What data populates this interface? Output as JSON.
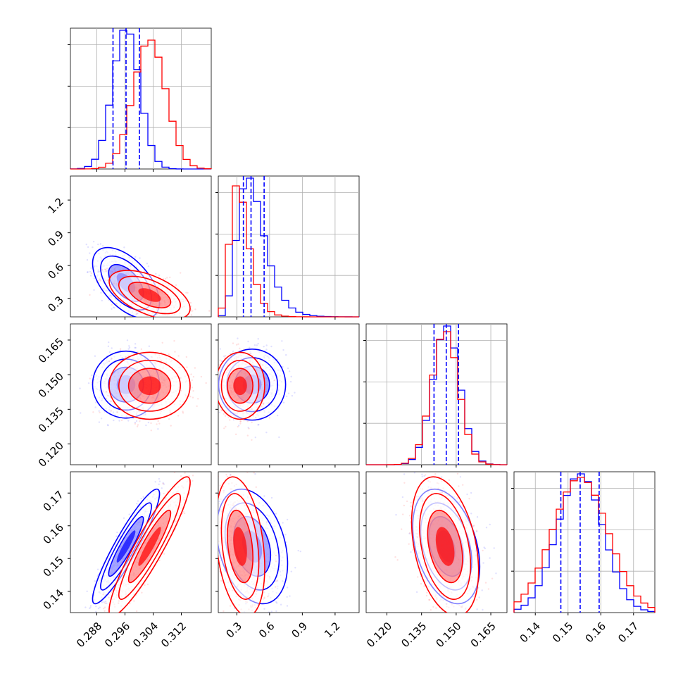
{
  "chart_data": {
    "type": "corner",
    "title": "",
    "parameters": 4,
    "colors": {
      "series_a": "#0000ff",
      "series_b": "#ff0000",
      "grid": "#b0b0b0"
    },
    "grid": true,
    "series": [
      {
        "color": "#0000ff",
        "means": [
          0.2963,
          0.44,
          0.1457,
          0.1537
        ],
        "sds": [
          0.0038,
          0.13,
          0.0058,
          0.007
        ],
        "quantiles_shown": true
      },
      {
        "color": "#ff0000",
        "means": [
          0.303,
          0.33,
          0.1452,
          0.1537
        ],
        "sds": [
          0.0046,
          0.09,
          0.0058,
          0.0085
        ]
      }
    ],
    "correlations": {
      "0-1": [
        -0.55,
        -0.55
      ],
      "0-2": [
        0.0,
        0.0
      ],
      "0-3": [
        0.92,
        0.92
      ],
      "1-2": [
        0.0,
        0.0
      ],
      "1-3": [
        -0.3,
        -0.3
      ],
      "2-3": [
        -0.35,
        -0.35
      ]
    },
    "quantiles": {
      "p0": [
        0.2926,
        0.2963,
        0.3001
      ],
      "p1": [
        0.36,
        0.43,
        0.55
      ],
      "p2": [
        0.1404,
        0.1457,
        0.151
      ],
      "p3": [
        0.1478,
        0.1537,
        0.1595
      ]
    },
    "ranges": [
      [
        0.2805,
        0.3205
      ],
      [
        0.13,
        1.42
      ],
      [
        0.111,
        0.172
      ],
      [
        0.1335,
        0.1765
      ]
    ],
    "histogram_max": [
      0.2,
      0.5,
      0.6,
      0.75
    ],
    "ticks": {
      "p0": [
        "0.288",
        "0.296",
        "0.304",
        "0.312"
      ],
      "p1": [
        "0.3",
        "0.6",
        "0.9",
        "1.2"
      ],
      "p2": [
        "0.120",
        "0.135",
        "0.150",
        "0.165"
      ],
      "p3": [
        "0.14",
        "0.15",
        "0.16",
        "0.17"
      ]
    },
    "tick_values": {
      "p0": [
        0.288,
        0.296,
        0.304,
        0.312
      ],
      "p1": [
        0.3,
        0.6,
        0.9,
        1.2
      ],
      "p2": [
        0.12,
        0.135,
        0.15,
        0.165
      ],
      "p3": [
        0.14,
        0.15,
        0.16,
        0.17
      ]
    },
    "axis_labels": [
      "",
      "",
      "",
      ""
    ]
  }
}
